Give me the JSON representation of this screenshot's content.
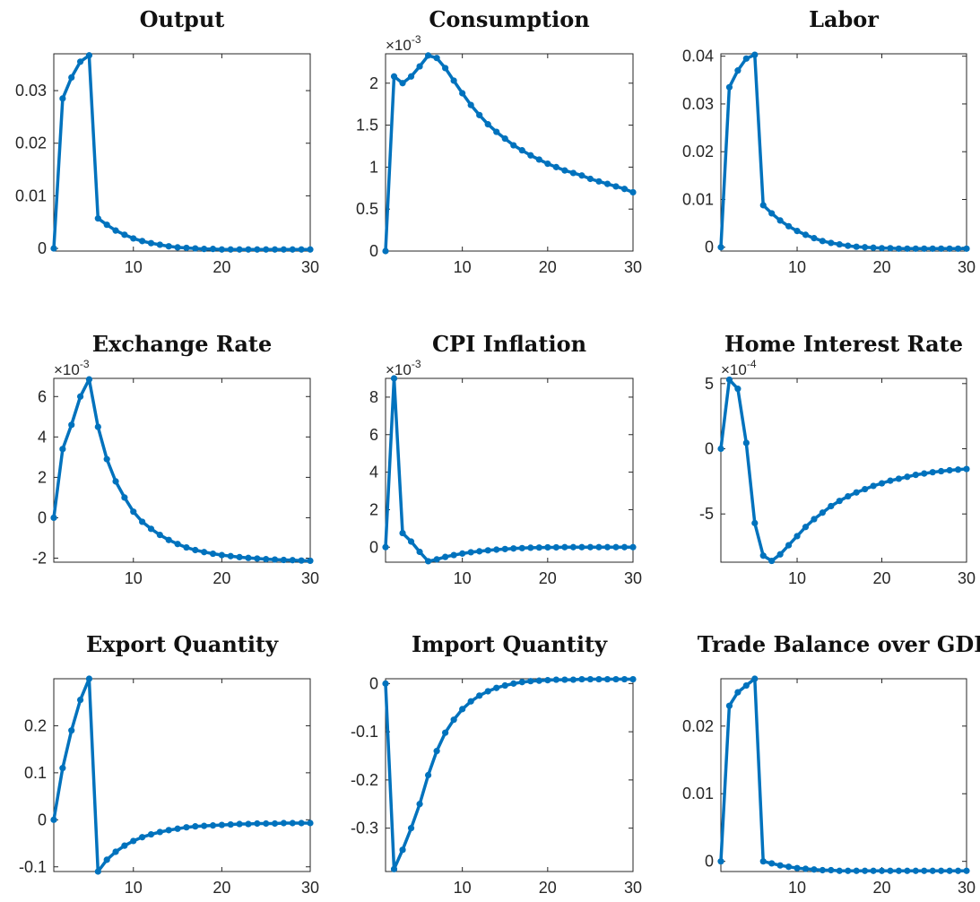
{
  "chart_data": [
    {
      "type": "line",
      "title": "Output",
      "exponent": "",
      "x": [
        1,
        2,
        3,
        4,
        5,
        6,
        7,
        8,
        9,
        10,
        11,
        12,
        13,
        14,
        15,
        16,
        17,
        18,
        19,
        20,
        21,
        22,
        23,
        24,
        25,
        26,
        27,
        28,
        29,
        30
      ],
      "values": [
        0,
        0.0285,
        0.0325,
        0.0355,
        0.0367,
        0.0057,
        0.0045,
        0.0034,
        0.0026,
        0.0019,
        0.0014,
        0.001,
        0.0007,
        0.0004,
        0.0002,
        0.0001,
        0,
        -0.0001,
        -0.0001,
        -0.0002,
        -0.0002,
        -0.0002,
        -0.0002,
        -0.0002,
        -0.0002,
        -0.0002,
        -0.0002,
        -0.0002,
        -0.0002,
        -0.0002
      ],
      "xlim": [
        1,
        30
      ],
      "ylim": [
        -0.0005,
        0.037
      ],
      "xticks": [
        10,
        20,
        30
      ],
      "xtick_labels": [
        "10",
        "20",
        "30"
      ],
      "yticks": [
        0,
        0.01,
        0.02,
        0.03
      ],
      "ytick_labels": [
        "0",
        "0.01",
        "0.02",
        "0.03"
      ]
    },
    {
      "type": "line",
      "title": "Consumption",
      "exponent": "-3",
      "x": [
        1,
        2,
        3,
        4,
        5,
        6,
        7,
        8,
        9,
        10,
        11,
        12,
        13,
        14,
        15,
        16,
        17,
        18,
        19,
        20,
        21,
        22,
        23,
        24,
        25,
        26,
        27,
        28,
        29,
        30
      ],
      "values": [
        0,
        2.08,
        2.0,
        2.08,
        2.2,
        2.33,
        2.3,
        2.18,
        2.03,
        1.88,
        1.74,
        1.62,
        1.51,
        1.42,
        1.34,
        1.26,
        1.2,
        1.14,
        1.09,
        1.04,
        1.0,
        0.96,
        0.93,
        0.9,
        0.86,
        0.83,
        0.8,
        0.77,
        0.74,
        0.7
      ],
      "xlim": [
        1,
        30
      ],
      "ylim": [
        0,
        2.35
      ],
      "xticks": [
        10,
        20,
        30
      ],
      "xtick_labels": [
        "10",
        "20",
        "30"
      ],
      "yticks": [
        0,
        0.5,
        1,
        1.5,
        2
      ],
      "ytick_labels": [
        "0",
        "0.5",
        "1",
        "1.5",
        "2"
      ]
    },
    {
      "type": "line",
      "title": "Labor",
      "exponent": "",
      "x": [
        1,
        2,
        3,
        4,
        5,
        6,
        7,
        8,
        9,
        10,
        11,
        12,
        13,
        14,
        15,
        16,
        17,
        18,
        19,
        20,
        21,
        22,
        23,
        24,
        25,
        26,
        27,
        28,
        29,
        30
      ],
      "values": [
        0,
        0.0335,
        0.037,
        0.0395,
        0.0403,
        0.0088,
        0.0071,
        0.0056,
        0.0044,
        0.0034,
        0.0026,
        0.0019,
        0.0013,
        0.0009,
        0.0006,
        0.0003,
        0.0001,
        0,
        -0.0001,
        -0.0002,
        -0.0002,
        -0.0003,
        -0.0003,
        -0.0003,
        -0.0003,
        -0.0003,
        -0.0003,
        -0.0003,
        -0.0003,
        -0.0003
      ],
      "xlim": [
        1,
        30
      ],
      "ylim": [
        -0.0008,
        0.0405
      ],
      "xticks": [
        10,
        20,
        30
      ],
      "xtick_labels": [
        "10",
        "20",
        "30"
      ],
      "yticks": [
        0,
        0.01,
        0.02,
        0.03,
        0.04
      ],
      "ytick_labels": [
        "0",
        "0.01",
        "0.02",
        "0.03",
        "0.04"
      ]
    },
    {
      "type": "line",
      "title": "Exchange Rate",
      "exponent": "-3",
      "x": [
        1,
        2,
        3,
        4,
        5,
        6,
        7,
        8,
        9,
        10,
        11,
        12,
        13,
        14,
        15,
        16,
        17,
        18,
        19,
        20,
        21,
        22,
        23,
        24,
        25,
        26,
        27,
        28,
        29,
        30
      ],
      "values": [
        0,
        3.4,
        4.6,
        6.0,
        6.85,
        4.5,
        2.9,
        1.8,
        1.0,
        0.3,
        -0.2,
        -0.55,
        -0.85,
        -1.1,
        -1.3,
        -1.47,
        -1.6,
        -1.7,
        -1.78,
        -1.85,
        -1.9,
        -1.95,
        -1.99,
        -2.02,
        -2.05,
        -2.07,
        -2.09,
        -2.1,
        -2.12,
        -2.13
      ],
      "xlim": [
        1,
        30
      ],
      "ylim": [
        -2.2,
        6.9
      ],
      "xticks": [
        10,
        20,
        30
      ],
      "xtick_labels": [
        "10",
        "20",
        "30"
      ],
      "yticks": [
        -2,
        0,
        2,
        4,
        6
      ],
      "ytick_labels": [
        "-2",
        "0",
        "2",
        "4",
        "6"
      ]
    },
    {
      "type": "line",
      "title": "CPI Inflation",
      "exponent": "-3",
      "x": [
        1,
        2,
        3,
        4,
        5,
        6,
        7,
        8,
        9,
        10,
        11,
        12,
        13,
        14,
        15,
        16,
        17,
        18,
        19,
        20,
        21,
        22,
        23,
        24,
        25,
        26,
        27,
        28,
        29,
        30
      ],
      "values": [
        0,
        9.0,
        0.75,
        0.3,
        -0.25,
        -0.75,
        -0.65,
        -0.52,
        -0.42,
        -0.34,
        -0.27,
        -0.22,
        -0.17,
        -0.13,
        -0.1,
        -0.07,
        -0.05,
        -0.03,
        -0.02,
        -0.01,
        -0.01,
        0,
        0,
        0,
        0,
        0,
        0,
        0,
        0,
        0
      ],
      "xlim": [
        1,
        30
      ],
      "ylim": [
        -0.8,
        9.0
      ],
      "xticks": [
        10,
        20,
        30
      ],
      "xtick_labels": [
        "10",
        "20",
        "30"
      ],
      "yticks": [
        0,
        2,
        4,
        6,
        8
      ],
      "ytick_labels": [
        "0",
        "2",
        "4",
        "6",
        "8"
      ]
    },
    {
      "type": "line",
      "title": "Home Interest Rate",
      "exponent": "-4",
      "x": [
        1,
        2,
        3,
        4,
        5,
        6,
        7,
        8,
        9,
        10,
        11,
        12,
        13,
        14,
        15,
        16,
        17,
        18,
        19,
        20,
        21,
        22,
        23,
        24,
        25,
        26,
        27,
        28,
        29,
        30
      ],
      "values": [
        0,
        5.3,
        4.6,
        0.45,
        -5.7,
        -8.2,
        -8.6,
        -8.1,
        -7.4,
        -6.7,
        -6.0,
        -5.4,
        -4.9,
        -4.4,
        -4.0,
        -3.65,
        -3.35,
        -3.1,
        -2.85,
        -2.65,
        -2.45,
        -2.3,
        -2.15,
        -2.0,
        -1.9,
        -1.8,
        -1.72,
        -1.65,
        -1.6,
        -1.55
      ],
      "xlim": [
        1,
        30
      ],
      "ylim": [
        -8.7,
        5.4
      ],
      "xticks": [
        10,
        20,
        30
      ],
      "xtick_labels": [
        "10",
        "20",
        "30"
      ],
      "yticks": [
        -5,
        0,
        5
      ],
      "ytick_labels": [
        "-5",
        "0",
        "5"
      ]
    },
    {
      "type": "line",
      "title": "Export Quantity",
      "exponent": "",
      "x": [
        1,
        2,
        3,
        4,
        5,
        6,
        7,
        8,
        9,
        10,
        11,
        12,
        13,
        14,
        15,
        16,
        17,
        18,
        19,
        20,
        21,
        22,
        23,
        24,
        25,
        26,
        27,
        28,
        29,
        30
      ],
      "values": [
        0,
        0.11,
        0.19,
        0.255,
        0.3,
        -0.11,
        -0.085,
        -0.068,
        -0.055,
        -0.045,
        -0.037,
        -0.031,
        -0.026,
        -0.022,
        -0.019,
        -0.016,
        -0.014,
        -0.013,
        -0.012,
        -0.011,
        -0.01,
        -0.009,
        -0.009,
        -0.008,
        -0.008,
        -0.008,
        -0.007,
        -0.007,
        -0.007,
        -0.007
      ],
      "xlim": [
        1,
        30
      ],
      "ylim": [
        -0.11,
        0.3
      ],
      "xticks": [
        10,
        20,
        30
      ],
      "xtick_labels": [
        "10",
        "20",
        "30"
      ],
      "yticks": [
        -0.1,
        0,
        0.1,
        0.2
      ],
      "ytick_labels": [
        "-0.1",
        "0",
        "0.1",
        "0.2"
      ]
    },
    {
      "type": "line",
      "title": "Import Quantity",
      "exponent": "",
      "x": [
        1,
        2,
        3,
        4,
        5,
        6,
        7,
        8,
        9,
        10,
        11,
        12,
        13,
        14,
        15,
        16,
        17,
        18,
        19,
        20,
        21,
        22,
        23,
        24,
        25,
        26,
        27,
        28,
        29,
        30
      ],
      "values": [
        0,
        -0.385,
        -0.345,
        -0.3,
        -0.25,
        -0.19,
        -0.14,
        -0.102,
        -0.075,
        -0.053,
        -0.037,
        -0.025,
        -0.016,
        -0.009,
        -0.004,
        0,
        0.003,
        0.005,
        0.006,
        0.007,
        0.008,
        0.008,
        0.008,
        0.009,
        0.009,
        0.009,
        0.009,
        0.009,
        0.009,
        0.009
      ],
      "xlim": [
        1,
        30
      ],
      "ylim": [
        -0.39,
        0.01
      ],
      "xticks": [
        10,
        20,
        30
      ],
      "xtick_labels": [
        "10",
        "20",
        "30"
      ],
      "yticks": [
        -0.3,
        -0.2,
        -0.1,
        0
      ],
      "ytick_labels": [
        "-0.3",
        "-0.2",
        "-0.1",
        "0"
      ]
    },
    {
      "type": "line",
      "title": "Trade Balance over GDP",
      "exponent": "",
      "x": [
        1,
        2,
        3,
        4,
        5,
        6,
        7,
        8,
        9,
        10,
        11,
        12,
        13,
        14,
        15,
        16,
        17,
        18,
        19,
        20,
        21,
        22,
        23,
        24,
        25,
        26,
        27,
        28,
        29,
        30
      ],
      "values": [
        0,
        0.023,
        0.025,
        0.026,
        0.027,
        0,
        -0.0003,
        -0.0006,
        -0.0008,
        -0.001,
        -0.0011,
        -0.0012,
        -0.0013,
        -0.0013,
        -0.0014,
        -0.0014,
        -0.0014,
        -0.0014,
        -0.0014,
        -0.0014,
        -0.0014,
        -0.0014,
        -0.0014,
        -0.0014,
        -0.0014,
        -0.0014,
        -0.0014,
        -0.0014,
        -0.0014,
        -0.0014
      ],
      "xlim": [
        1,
        30
      ],
      "ylim": [
        -0.0015,
        0.027
      ],
      "xticks": [
        10,
        20,
        30
      ],
      "xtick_labels": [
        "10",
        "20",
        "30"
      ],
      "yticks": [
        0,
        0.01,
        0.02
      ],
      "ytick_labels": [
        "0",
        "0.01",
        "0.02"
      ]
    }
  ],
  "colors": {
    "series": "#0072BD",
    "axis": "#262626",
    "title": "#111111"
  },
  "exponent_prefix": "×10"
}
